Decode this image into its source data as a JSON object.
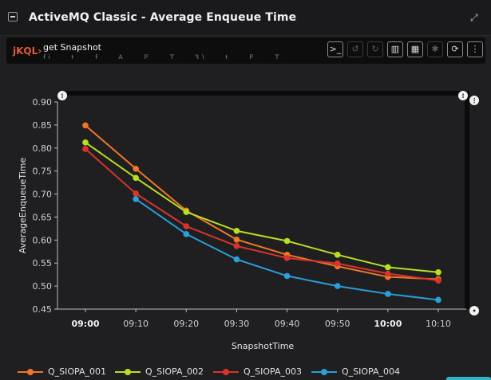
{
  "window": {
    "title": "ActiveMQ Classic - Average Enqueue Time"
  },
  "query": {
    "prefix": "jKQL",
    "text": "get Snapshot",
    "line2": "fi... t... f... A... E... T... 3)... t... E... T..."
  },
  "toolbar": {
    "buttons": [
      {
        "name": "terminal-icon",
        "glyph": ">_",
        "enabled": true
      },
      {
        "name": "undo-icon",
        "glyph": "↺",
        "enabled": false
      },
      {
        "name": "redo-icon",
        "glyph": "↻",
        "enabled": false
      },
      {
        "name": "bar-chart-icon",
        "glyph": "▥",
        "enabled": true
      },
      {
        "name": "calendar-icon",
        "glyph": "▦",
        "enabled": true
      },
      {
        "name": "settings-icon",
        "glyph": "✱",
        "enabled": false
      },
      {
        "name": "refresh-icon",
        "glyph": "⟳",
        "enabled": true
      },
      {
        "name": "more-icon",
        "glyph": "⋮",
        "enabled": true
      }
    ]
  },
  "colors": {
    "s1": "#f0772a",
    "s2": "#b7e021",
    "s3": "#d9342c",
    "s4": "#2a9fd8",
    "axis": "#bdbdbd",
    "grid": "#2e2e30"
  },
  "chart_data": {
    "type": "line",
    "xlabel": "SnapshotTime",
    "ylabel": "AverageEnqueueTime",
    "categories": [
      "09:00",
      "09:10",
      "09:20",
      "09:30",
      "09:40",
      "09:50",
      "10:00",
      "10:10"
    ],
    "bold_ticks": [
      "09:00",
      "10:00"
    ],
    "ylim": [
      0.45,
      0.9
    ],
    "yticks": [
      "0.90",
      "0.85",
      "0.80",
      "0.75",
      "0.70",
      "0.65",
      "0.60",
      "0.55",
      "0.50",
      "0.45"
    ],
    "series": [
      {
        "name": "Q_SIOPA_001",
        "values": [
          0.849,
          0.755,
          0.664,
          0.601,
          0.568,
          0.543,
          0.52,
          0.515
        ]
      },
      {
        "name": "Q_SIOPA_002",
        "values": [
          0.812,
          0.735,
          0.661,
          0.62,
          0.598,
          0.568,
          0.541,
          0.53
        ]
      },
      {
        "name": "Q_SIOPA_003",
        "values": [
          0.798,
          0.701,
          0.63,
          0.587,
          0.561,
          0.549,
          0.527,
          0.512
        ]
      },
      {
        "name": "Q_SIOPA_004",
        "values": [
          null,
          0.689,
          0.613,
          0.558,
          0.522,
          0.5,
          0.483,
          0.47
        ]
      }
    ]
  }
}
